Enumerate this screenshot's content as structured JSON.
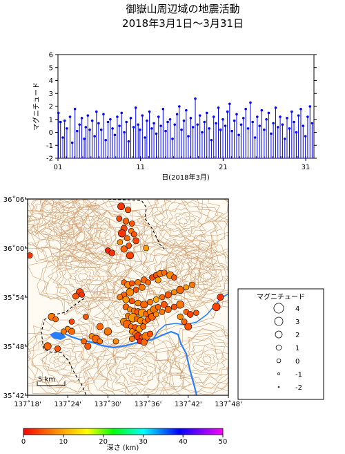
{
  "title": {
    "line1": "御嶽山周辺域の地震活動",
    "line2": "2018年3月1日～3月31日"
  },
  "chart_data": [
    {
      "type": "stem",
      "ylabel": "マグニチュード",
      "xlabel": "日(2018年3月)",
      "ylim": [
        -2,
        6
      ],
      "xlim": [
        1,
        32
      ],
      "y_ticks": [
        -2,
        -1,
        0,
        1,
        2,
        3,
        4,
        5,
        6
      ],
      "x_ticks": [
        {
          "value": 1,
          "label": "01"
        },
        {
          "value": 11,
          "label": "11"
        },
        {
          "value": 21,
          "label": "21"
        },
        {
          "value": 31,
          "label": "31"
        }
      ],
      "color": "#0000ff",
      "days": [
        1.06,
        1.31,
        1.59,
        1.81,
        2.08,
        2.46,
        2.73,
        3.06,
        3.32,
        3.61,
        3.89,
        4.18,
        4.37,
        4.62,
        4.85,
        5.15,
        5.44,
        5.66,
        5.92,
        6.24,
        6.51,
        6.78,
        7.06,
        7.34,
        7.61,
        7.89,
        8.18,
        8.44,
        8.71,
        9.03,
        9.29,
        9.56,
        9.82,
        10.16,
        10.42,
        10.71,
        10.93,
        11.22,
        11.54,
        11.77,
        12.08,
        12.36,
        12.62,
        12.91,
        13.18,
        13.46,
        13.73,
        14.04,
        14.29,
        14.58,
        14.87,
        15.14,
        15.42,
        15.69,
        15.96,
        16.25,
        16.53,
        16.79,
        17.08,
        17.35,
        17.63,
        17.9,
        18.19,
        18.46,
        18.74,
        19.03,
        19.31,
        19.58,
        19.86,
        20.14,
        20.43,
        20.69,
        20.97,
        21.26,
        21.53,
        21.79,
        22.07,
        22.36,
        22.64,
        22.9,
        23.18,
        23.46,
        23.74,
        24.02,
        24.31,
        24.58,
        24.86,
        25.13,
        25.42,
        25.68,
        25.97,
        26.24,
        26.52,
        26.81,
        27.08,
        27.36,
        27.63,
        27.91,
        28.19,
        28.47,
        28.74,
        29.03,
        29.31,
        29.58,
        29.86,
        30.13,
        30.41,
        30.69,
        30.97,
        31.24,
        31.52,
        31.78
      ],
      "magnitudes": [
        1.5,
        0.8,
        -0.4,
        0.9,
        0.3,
        1.2,
        -0.8,
        1.8,
        0.1,
        0.6,
        1.1,
        -0.5,
        0.4,
        1.3,
        0.2,
        0.9,
        -0.3,
        1.6,
        0.7,
        0.2,
        1.4,
        -0.6,
        0.8,
        1.0,
        0.3,
        -0.2,
        1.2,
        0.5,
        1.5,
        0.0,
        0.8,
        -0.7,
        1.1,
        0.4,
        1.9,
        0.6,
        0.2,
        1.3,
        -0.4,
        0.9,
        1.6,
        0.3,
        0.7,
        -0.1,
        1.2,
        0.5,
        1.8,
        0.1,
        0.8,
        1.0,
        -0.5,
        0.6,
        1.4,
        2.0,
        0.2,
        0.9,
        1.7,
        -0.3,
        1.1,
        0.4,
        2.6,
        0.6,
        1.3,
        0.0,
        0.8,
        1.5,
        0.3,
        -0.6,
        1.2,
        0.7,
        1.9,
        0.2,
        1.0,
        0.5,
        1.6,
        2.2,
        0.1,
        0.9,
        1.4,
        -0.2,
        0.6,
        1.1,
        1.8,
        0.3,
        2.3,
        0.8,
        -0.4,
        1.2,
        0.5,
        1.7,
        0.2,
        1.0,
        1.5,
        -0.1,
        0.7,
        1.9,
        0.4,
        1.2,
        0.6,
        -0.5,
        1.1,
        0.3,
        1.6,
        0.8,
        0.0,
        1.3,
        1.8,
        0.5,
        -0.3,
        1.2,
        2.0,
        0.7
      ]
    },
    {
      "type": "scatter",
      "xlabel": "",
      "ylabel": "",
      "xlim": [
        137.3,
        137.8
      ],
      "ylim": [
        35.7,
        36.1
      ],
      "x_ticks": [
        "137˚18'",
        "137˚24'",
        "137˚30'",
        "137˚36'",
        "137˚42'",
        "137˚48'"
      ],
      "y_ticks": [
        "35˚42'",
        "35˚48'",
        "35˚54'",
        "36˚00'",
        "36˚06'"
      ],
      "scale_bar": "5 km",
      "events": [
        [
          137.533,
          36.085,
          3
        ],
        [
          137.55,
          36.078,
          5
        ],
        [
          137.528,
          36.06,
          4
        ],
        [
          137.545,
          36.055,
          6
        ],
        [
          137.56,
          36.05,
          5
        ],
        [
          137.54,
          36.04,
          4
        ],
        [
          137.558,
          36.035,
          7
        ],
        [
          137.535,
          36.03,
          3
        ],
        [
          137.565,
          36.028,
          5
        ],
        [
          137.548,
          36.02,
          6
        ],
        [
          137.57,
          36.015,
          4
        ],
        [
          137.53,
          36.012,
          8
        ],
        [
          137.552,
          36.005,
          5
        ],
        [
          137.54,
          35.998,
          6
        ],
        [
          137.5,
          35.995,
          2
        ],
        [
          137.51,
          35.99,
          3
        ],
        [
          137.595,
          36.0,
          9
        ],
        [
          137.555,
          35.985,
          4
        ],
        [
          137.305,
          35.985,
          3
        ],
        [
          137.54,
          35.93,
          6
        ],
        [
          137.55,
          35.925,
          8
        ],
        [
          137.56,
          35.928,
          5
        ],
        [
          137.575,
          35.93,
          7
        ],
        [
          137.59,
          35.935,
          6
        ],
        [
          137.61,
          35.94,
          4
        ],
        [
          137.62,
          35.945,
          5
        ],
        [
          137.63,
          35.948,
          7
        ],
        [
          137.64,
          35.95,
          6
        ],
        [
          137.655,
          35.945,
          8
        ],
        [
          137.665,
          35.94,
          5
        ],
        [
          137.625,
          35.935,
          9
        ],
        [
          137.6,
          35.93,
          6
        ],
        [
          137.585,
          35.92,
          7
        ],
        [
          137.57,
          35.915,
          5
        ],
        [
          137.555,
          35.91,
          8
        ],
        [
          137.54,
          35.905,
          6
        ],
        [
          137.53,
          35.9,
          7
        ],
        [
          137.545,
          35.895,
          9
        ],
        [
          137.56,
          35.892,
          5
        ],
        [
          137.575,
          35.888,
          8
        ],
        [
          137.59,
          35.885,
          6
        ],
        [
          137.605,
          35.89,
          7
        ],
        [
          137.62,
          35.895,
          10
        ],
        [
          137.635,
          35.9,
          6
        ],
        [
          137.65,
          35.905,
          5
        ],
        [
          137.665,
          35.91,
          8
        ],
        [
          137.68,
          35.915,
          6
        ],
        [
          137.695,
          35.92,
          9
        ],
        [
          137.71,
          35.925,
          7
        ],
        [
          137.545,
          35.88,
          6
        ],
        [
          137.555,
          35.875,
          8
        ],
        [
          137.565,
          35.872,
          7
        ],
        [
          137.575,
          35.87,
          5
        ],
        [
          137.585,
          35.868,
          9
        ],
        [
          137.595,
          35.866,
          6
        ],
        [
          137.605,
          35.87,
          8
        ],
        [
          137.615,
          35.875,
          7
        ],
        [
          137.625,
          35.88,
          6
        ],
        [
          137.64,
          35.885,
          5
        ],
        [
          137.55,
          35.862,
          7
        ],
        [
          137.562,
          35.858,
          9
        ],
        [
          137.572,
          35.856,
          6
        ],
        [
          137.582,
          35.852,
          8
        ],
        [
          137.592,
          35.85,
          7
        ],
        [
          137.6,
          35.855,
          5
        ],
        [
          137.61,
          35.86,
          6
        ],
        [
          137.62,
          35.865,
          8
        ],
        [
          137.635,
          35.87,
          7
        ],
        [
          137.65,
          35.875,
          6
        ],
        [
          137.665,
          35.88,
          5
        ],
        [
          137.68,
          35.885,
          7
        ],
        [
          137.695,
          35.87,
          6
        ],
        [
          137.705,
          35.865,
          4
        ],
        [
          137.72,
          35.868,
          5
        ],
        [
          137.54,
          35.85,
          8
        ],
        [
          137.548,
          35.845,
          6
        ],
        [
          137.558,
          35.84,
          7
        ],
        [
          137.568,
          35.838,
          5
        ],
        [
          137.578,
          35.835,
          9
        ],
        [
          137.588,
          35.84,
          6
        ],
        [
          137.56,
          35.83,
          8
        ],
        [
          137.57,
          35.825,
          7
        ],
        [
          137.575,
          35.82,
          3
        ],
        [
          137.585,
          35.818,
          6
        ],
        [
          137.595,
          35.82,
          7
        ],
        [
          137.605,
          35.825,
          5
        ],
        [
          137.58,
          35.81,
          2
        ],
        [
          137.59,
          35.808,
          6
        ],
        [
          137.56,
          35.815,
          7
        ],
        [
          137.43,
          35.91,
          4
        ],
        [
          137.435,
          35.905,
          3
        ],
        [
          137.42,
          35.902,
          5
        ],
        [
          137.36,
          35.86,
          7
        ],
        [
          137.37,
          35.855,
          6
        ],
        [
          137.46,
          35.82,
          8
        ],
        [
          137.47,
          35.815,
          6
        ],
        [
          137.48,
          35.81,
          7
        ],
        [
          137.45,
          35.8,
          5
        ],
        [
          137.44,
          35.81,
          6
        ],
        [
          137.4,
          35.835,
          8
        ],
        [
          137.41,
          35.83,
          6
        ],
        [
          137.39,
          35.83,
          7
        ],
        [
          137.35,
          35.8,
          6
        ],
        [
          137.375,
          35.795,
          5
        ],
        [
          137.41,
          35.85,
          4
        ],
        [
          137.48,
          35.84,
          6
        ],
        [
          137.5,
          35.83,
          7
        ],
        [
          137.52,
          35.81,
          8
        ],
        [
          137.445,
          35.86,
          5
        ],
        [
          137.78,
          35.9,
          3
        ],
        [
          137.77,
          35.88,
          4
        ],
        [
          137.69,
          35.85,
          6
        ],
        [
          137.7,
          35.84,
          5
        ],
        [
          137.68,
          35.86,
          8
        ]
      ]
    }
  ],
  "legend": {
    "title": "マグニチュード",
    "items": [
      "4",
      "3",
      "2",
      "1",
      "0",
      "-1",
      "-2"
    ]
  },
  "colorbar": {
    "label": "深さ (km)",
    "ticks": [
      "0",
      "10",
      "20",
      "30",
      "40",
      "50"
    ],
    "range": [
      0,
      50
    ]
  }
}
